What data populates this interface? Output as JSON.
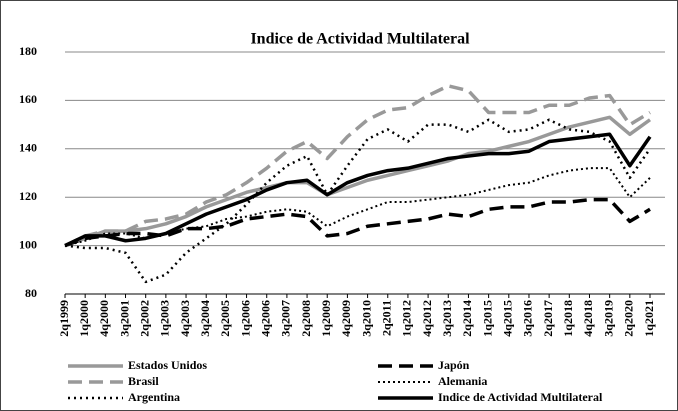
{
  "chart_data": {
    "type": "line",
    "title": "Indice de Actividad Multilateral",
    "categories": [
      "2q1999",
      "1q2000",
      "4q2000",
      "3q2001",
      "2q2002",
      "1q2003",
      "4q2003",
      "3q2004",
      "2q2005",
      "1q2006",
      "4q2006",
      "3q2007",
      "2q2008",
      "1q2009",
      "4q2009",
      "3q2010",
      "2q2011",
      "1q2012",
      "4q2012",
      "3q2013",
      "2q2014",
      "1q2015",
      "4q2015",
      "3q2016",
      "2q2017",
      "1q2018",
      "4q2018",
      "3q2019",
      "2q2020",
      "1q2021"
    ],
    "ylim": [
      80,
      180
    ],
    "yticks": [
      80,
      100,
      120,
      140,
      160,
      180
    ],
    "grid": true,
    "series": [
      {
        "name": "Estados Unidos",
        "color": "#999999",
        "style": "solid",
        "values": [
          100,
          103,
          106,
          106,
          107,
          109,
          112,
          116,
          119,
          122,
          124,
          126,
          126,
          121,
          124,
          127,
          129,
          131,
          133,
          135,
          138,
          139,
          141,
          143,
          146,
          149,
          151,
          153,
          146,
          152
        ]
      },
      {
        "name": "Japón",
        "color": "#000000",
        "style": "dashed",
        "values": [
          100,
          103,
          104,
          105,
          105,
          104,
          107,
          107,
          108,
          111,
          112,
          113,
          112,
          104,
          105,
          108,
          109,
          110,
          111,
          113,
          112,
          115,
          116,
          116,
          118,
          118,
          119,
          119,
          110,
          115
        ]
      },
      {
        "name": "Brasil",
        "color": "#999999",
        "style": "dashed",
        "values": [
          100,
          104,
          106,
          106,
          110,
          111,
          113,
          118,
          121,
          126,
          132,
          139,
          143,
          136,
          145,
          152,
          156,
          157,
          162,
          166,
          164,
          155,
          155,
          155,
          158,
          158,
          161,
          162,
          150,
          155
        ]
      },
      {
        "name": "Alemania",
        "color": "#000000",
        "style": "dotted-thin",
        "values": [
          100,
          102,
          105,
          105,
          103,
          105,
          107,
          108,
          111,
          112,
          114,
          115,
          114,
          108,
          112,
          115,
          118,
          118,
          119,
          120,
          121,
          123,
          125,
          126,
          129,
          131,
          132,
          132,
          120,
          128
        ]
      },
      {
        "name": "Argentina",
        "color": "#000000",
        "style": "dotted",
        "values": [
          100,
          99,
          99,
          97,
          85,
          88,
          97,
          103,
          109,
          117,
          126,
          133,
          137,
          121,
          133,
          144,
          148,
          143,
          150,
          150,
          147,
          152,
          147,
          148,
          152,
          148,
          147,
          143,
          128,
          140
        ]
      },
      {
        "name": "Indice de Actividad Multilateral",
        "color": "#000000",
        "style": "solid",
        "values": [
          100,
          104,
          104,
          102,
          103,
          105,
          109,
          113,
          116,
          119,
          123,
          126,
          127,
          121,
          126,
          129,
          131,
          132,
          134,
          136,
          137,
          138,
          138,
          139,
          143,
          144,
          145,
          146,
          133,
          145
        ]
      }
    ]
  }
}
